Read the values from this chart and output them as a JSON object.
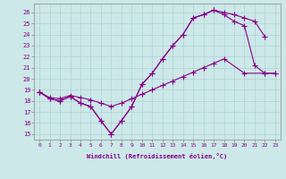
{
  "xlabel": "Windchill (Refroidissement éolien,°C)",
  "background_color": "#cce8e8",
  "grid_color": "#aacccc",
  "line_color": "#880088",
  "xlim_min": -0.5,
  "xlim_max": 23.5,
  "ylim_min": 14.5,
  "ylim_max": 26.8,
  "yticks": [
    15,
    16,
    17,
    18,
    19,
    20,
    21,
    22,
    23,
    24,
    25,
    26
  ],
  "xticks": [
    0,
    1,
    2,
    3,
    4,
    5,
    6,
    7,
    8,
    9,
    10,
    11,
    12,
    13,
    14,
    15,
    16,
    17,
    18,
    19,
    20,
    21,
    22,
    23
  ],
  "series1_x": [
    0,
    1,
    2,
    3,
    4,
    5,
    6,
    7,
    8,
    9,
    10,
    11,
    12,
    13,
    14,
    15,
    16,
    17,
    18,
    19,
    20,
    21,
    22,
    23
  ],
  "series1_y": [
    18.8,
    18.2,
    18.0,
    18.4,
    17.8,
    17.5,
    16.2,
    15.0,
    16.2,
    17.5,
    19.5,
    20.5,
    21.8,
    23.0,
    24.0,
    25.5,
    25.8,
    26.2,
    25.8,
    25.2,
    24.8,
    21.2,
    20.5,
    20.5
  ],
  "series2_x": [
    0,
    1,
    2,
    3,
    4,
    5,
    6,
    7,
    8,
    9,
    10,
    11,
    12,
    13,
    14,
    15,
    16,
    17,
    18,
    19,
    20,
    21,
    22
  ],
  "series2_y": [
    18.8,
    18.2,
    18.0,
    18.4,
    17.8,
    17.5,
    16.2,
    15.0,
    16.2,
    17.5,
    19.5,
    20.5,
    21.8,
    23.0,
    24.0,
    25.5,
    25.8,
    26.2,
    26.0,
    25.8,
    25.5,
    25.2,
    23.8
  ],
  "series3_x": [
    0,
    1,
    2,
    3,
    4,
    5,
    6,
    7,
    8,
    9,
    10,
    11,
    12,
    13,
    14,
    15,
    16,
    17,
    18,
    20,
    22,
    23
  ],
  "series3_y": [
    18.8,
    18.3,
    18.2,
    18.5,
    18.3,
    18.1,
    17.8,
    17.5,
    17.8,
    18.2,
    18.6,
    19.0,
    19.4,
    19.8,
    20.2,
    20.6,
    21.0,
    21.4,
    21.8,
    20.5,
    20.5,
    20.5
  ]
}
